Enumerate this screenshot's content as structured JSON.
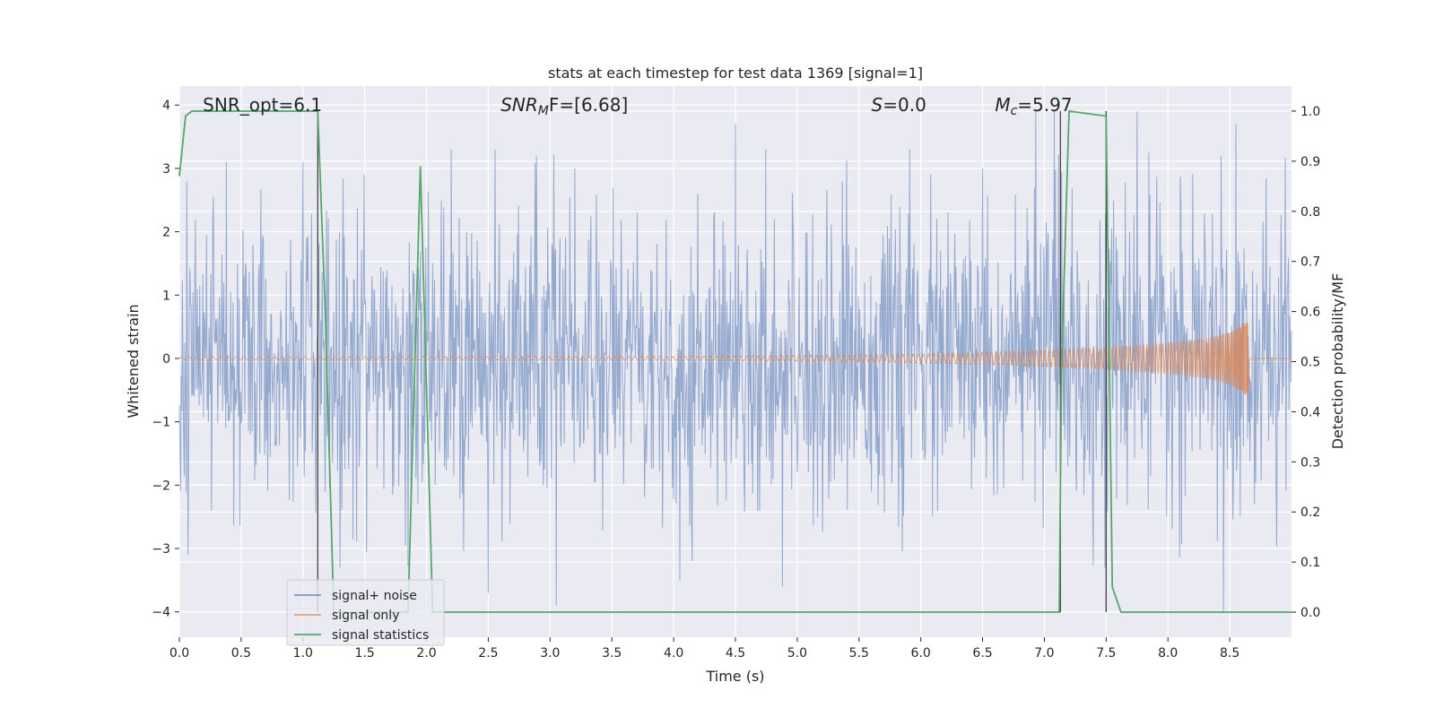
{
  "chart_data": {
    "type": "line",
    "title": "stats at each timestep for test data 1369 [signal=1]",
    "xlabel": "Time (s)",
    "ylabel": "Whitened strain",
    "ylabel_right": "Detection probability/MF",
    "xlim": [
      0.0,
      9.0
    ],
    "ylim": [
      -4.4,
      4.3
    ],
    "ylim_right": [
      -0.05,
      1.05
    ],
    "x_ticks": [
      0.0,
      0.5,
      1.0,
      1.5,
      2.0,
      2.5,
      3.0,
      3.5,
      4.0,
      4.5,
      5.0,
      5.5,
      6.0,
      6.5,
      7.0,
      7.5,
      8.0,
      8.5
    ],
    "x_tick_labels": [
      "0.0",
      "0.5",
      "1.0",
      "1.5",
      "2.0",
      "2.5",
      "3.0",
      "3.5",
      "4.0",
      "4.5",
      "5.0",
      "5.5",
      "6.0",
      "6.5",
      "7.0",
      "7.5",
      "8.0",
      "8.5"
    ],
    "y_ticks": [
      -4,
      -3,
      -2,
      -1,
      0,
      1,
      2,
      3,
      4
    ],
    "y_tick_labels": [
      "−4",
      "−3",
      "−2",
      "−1",
      "0",
      "1",
      "2",
      "3",
      "4"
    ],
    "y_ticks_right": [
      0.0,
      0.1,
      0.2,
      0.3,
      0.4,
      0.5,
      0.6,
      0.7,
      0.8,
      0.9,
      1.0
    ],
    "y_tick_labels_right": [
      "0.0",
      "0.1",
      "0.2",
      "0.3",
      "0.4",
      "0.5",
      "0.6",
      "0.7",
      "0.8",
      "0.9",
      "1.0"
    ],
    "grid": true,
    "legend_position": "lower-left",
    "annotations": [
      {
        "text": "SNR_opt=6.1",
        "x": 0.19
      },
      {
        "text": "SNR",
        "sub": "M",
        "after": "F=[6.68]",
        "italic": true,
        "x": 2.6
      },
      {
        "text": "S",
        "after": "=0.0",
        "italic": true,
        "x": 5.6
      },
      {
        "text": "M",
        "sub": "c",
        "after": "=5.97",
        "italic": true,
        "x": 6.6
      }
    ],
    "series": [
      {
        "name": "signal+ noise",
        "color": "#4c72b0",
        "kind": "noise",
        "sample_rate": 200,
        "sigma": 1.15,
        "envelope_upper": [
          [
            0,
            2.7
          ],
          [
            0.1,
            2.5
          ],
          [
            0.5,
            2.4
          ],
          [
            1.0,
            2.3
          ],
          [
            3.0,
            2.4
          ],
          [
            5.0,
            2.3
          ],
          [
            7.0,
            2.3
          ],
          [
            9.0,
            2.3
          ]
        ],
        "notable_peaks": [
          [
            0.06,
            2.8
          ],
          [
            0.38,
            3.1
          ],
          [
            1.0,
            3.1
          ],
          [
            2.2,
            3.3
          ],
          [
            3.2,
            3.0
          ],
          [
            4.5,
            3.7
          ],
          [
            6.5,
            3.0
          ],
          [
            6.93,
            3.9
          ],
          [
            7.08,
            3.9
          ],
          [
            7.75,
            3.9
          ],
          [
            8.55,
            3.7
          ]
        ],
        "notable_troughs": [
          [
            0.07,
            -3.1
          ],
          [
            1.3,
            -3.3
          ],
          [
            2.5,
            -3.7
          ],
          [
            3.05,
            -3.9
          ],
          [
            4.05,
            -3.5
          ],
          [
            4.88,
            -3.6
          ],
          [
            8.45,
            -4.0
          ],
          [
            8.7,
            -2.3
          ]
        ]
      },
      {
        "name": "signal only",
        "color": "#dd8452",
        "kind": "chirp",
        "t_merger": 8.65,
        "amplitude_points": [
          [
            0.0,
            0.02
          ],
          [
            4.0,
            0.03
          ],
          [
            5.0,
            0.05
          ],
          [
            6.0,
            0.07
          ],
          [
            7.0,
            0.13
          ],
          [
            7.5,
            0.17
          ],
          [
            8.0,
            0.24
          ],
          [
            8.3,
            0.31
          ],
          [
            8.5,
            0.41
          ],
          [
            8.6,
            0.53
          ],
          [
            8.65,
            0.6
          ]
        ]
      },
      {
        "name": "signal statistics",
        "color": "#55a868",
        "kind": "line",
        "axis": "right",
        "x": [
          0.0,
          0.05,
          0.1,
          1.12,
          1.18,
          1.25,
          1.3,
          1.85,
          1.95,
          2.05,
          2.1,
          7.1,
          7.12,
          7.14,
          7.2,
          7.5,
          7.55,
          7.62,
          9.0
        ],
        "y": [
          0.87,
          0.99,
          1.0,
          1.0,
          0.6,
          0.0,
          0.0,
          0.0,
          0.89,
          0.0,
          0.0,
          0.0,
          0.0,
          0.5,
          1.0,
          0.99,
          0.05,
          0.0,
          0.0
        ]
      }
    ],
    "vlines": [
      {
        "x": 1.12,
        "ymin": 0.0,
        "ymax": 1.0
      },
      {
        "x": 7.13,
        "ymin": 0.0,
        "ymax": 1.0
      },
      {
        "x": 7.5,
        "ymin": 0.0,
        "ymax": 1.0
      }
    ]
  }
}
